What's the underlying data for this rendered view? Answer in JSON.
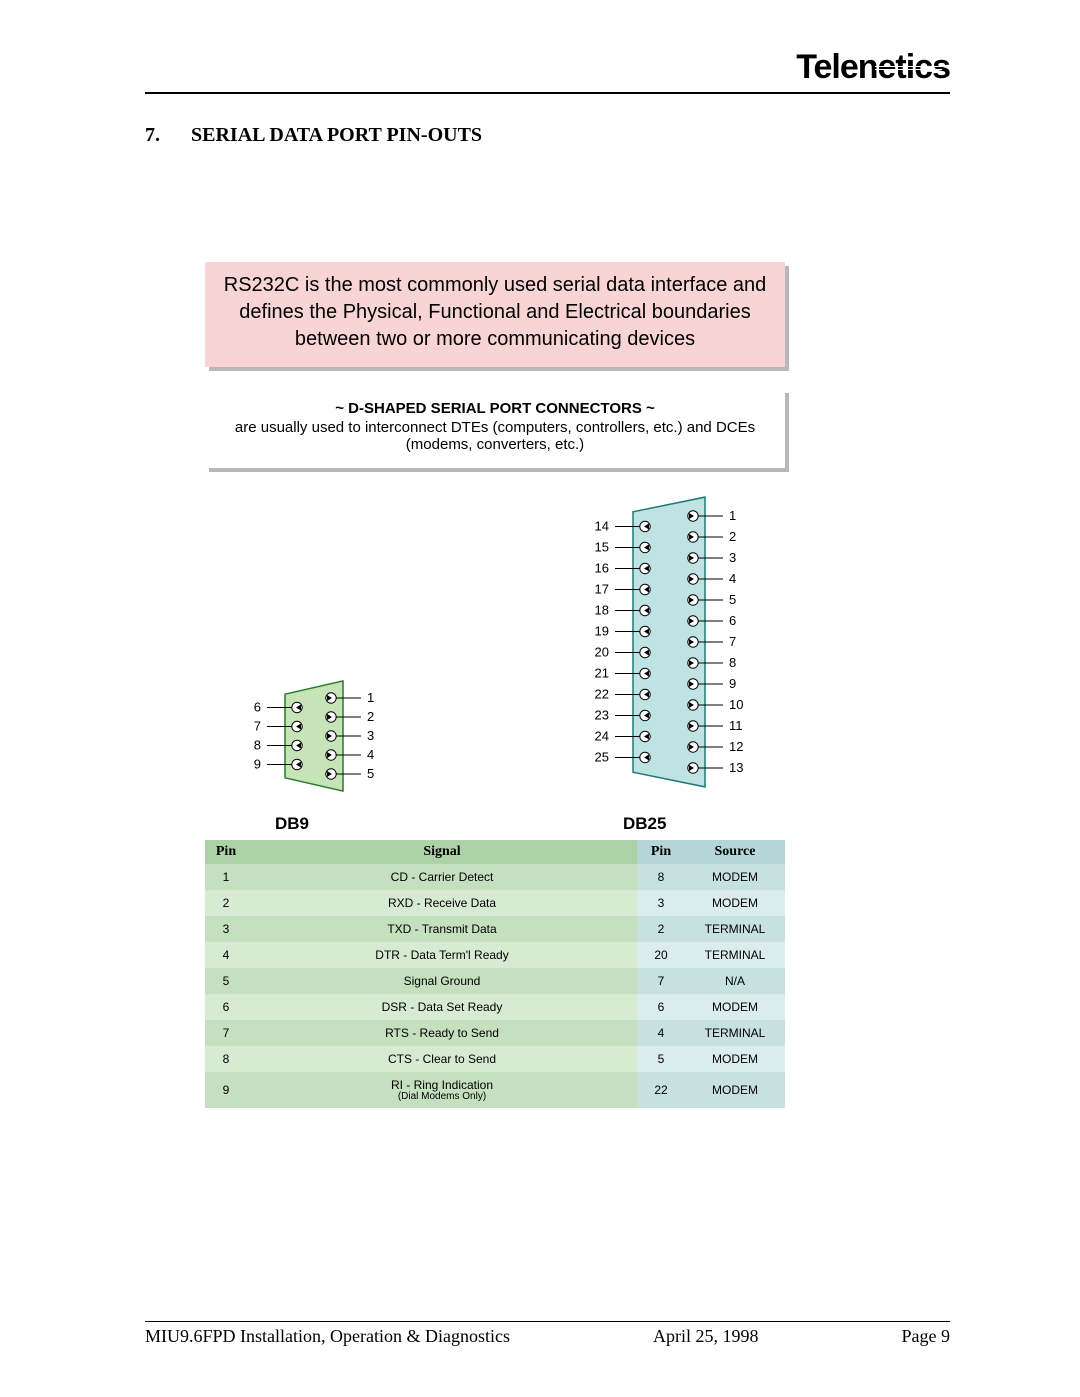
{
  "brand": {
    "logo_text": "Telenetics"
  },
  "heading": {
    "number": "7.",
    "title": "SERIAL DATA PORT PIN-OUTS"
  },
  "pink_box": {
    "text": "RS232C is the most commonly used serial data interface and defines the Physical, Functional and Electrical boundaries between two or more communicating devices",
    "background": "#f9d4d4",
    "shadow": "#b8b8b8",
    "fontsize": 20
  },
  "white_box": {
    "title": "~ D-SHAPED SERIAL PORT CONNECTORS ~",
    "subtitle": "are usually used to interconnect DTEs (computers, controllers, etc.) and DCEs (modems, converters, etc.)",
    "fontsize": 15
  },
  "connectors": {
    "db9": {
      "label": "DB9",
      "left_pins": [
        6,
        7,
        8,
        9
      ],
      "right_pins": [
        1,
        2,
        3,
        4,
        5
      ],
      "fill": "#c7e3b8",
      "stroke": "#2a7a2a"
    },
    "db25": {
      "label": "DB25",
      "left_pins": [
        14,
        15,
        16,
        17,
        18,
        19,
        20,
        21,
        22,
        23,
        24,
        25
      ],
      "right_pins": [
        1,
        2,
        3,
        4,
        5,
        6,
        7,
        8,
        9,
        10,
        11,
        12,
        13
      ],
      "fill": "#bfe2e2",
      "stroke": "#1f7a7a"
    },
    "pin_circle_fill": "#ffffff",
    "font_family": "Arial",
    "label_fontsize": 13
  },
  "table": {
    "headers": {
      "pin9": "Pin",
      "signal": "Signal",
      "pin25": "Pin",
      "source": "Source"
    },
    "header_colors": {
      "green": "#aed2a7",
      "blue": "#b5d6d6"
    },
    "row_colors": {
      "g0": "#c4e0be",
      "g1": "#d7ebd2",
      "b0": "#c7e1e1",
      "b1": "#daecec"
    },
    "rows": [
      {
        "pin9": "1",
        "signal": "CD - Carrier Detect",
        "pin25": "8",
        "source": "MODEM"
      },
      {
        "pin9": "2",
        "signal": "RXD - Receive Data",
        "pin25": "3",
        "source": "MODEM"
      },
      {
        "pin9": "3",
        "signal": "TXD - Transmit Data",
        "pin25": "2",
        "source": "TERMINAL"
      },
      {
        "pin9": "4",
        "signal": "DTR - Data Term'l Ready",
        "pin25": "20",
        "source": "TERMINAL"
      },
      {
        "pin9": "5",
        "signal": "Signal Ground",
        "pin25": "7",
        "source": "N/A"
      },
      {
        "pin9": "6",
        "signal": "DSR - Data Set Ready",
        "pin25": "6",
        "source": "MODEM"
      },
      {
        "pin9": "7",
        "signal": "RTS - Ready to Send",
        "pin25": "4",
        "source": "TERMINAL"
      },
      {
        "pin9": "8",
        "signal": "CTS - Clear to Send",
        "pin25": "5",
        "source": "MODEM"
      },
      {
        "pin9": "9",
        "signal": "RI - Ring Indication",
        "signal_sub": "(Dial Modems Only)",
        "pin25": "22",
        "source": "MODEM"
      }
    ]
  },
  "footer": {
    "left": "MIU9.6FPD Installation, Operation & Diagnostics",
    "center": "April 25, 1998",
    "right": "Page 9"
  }
}
